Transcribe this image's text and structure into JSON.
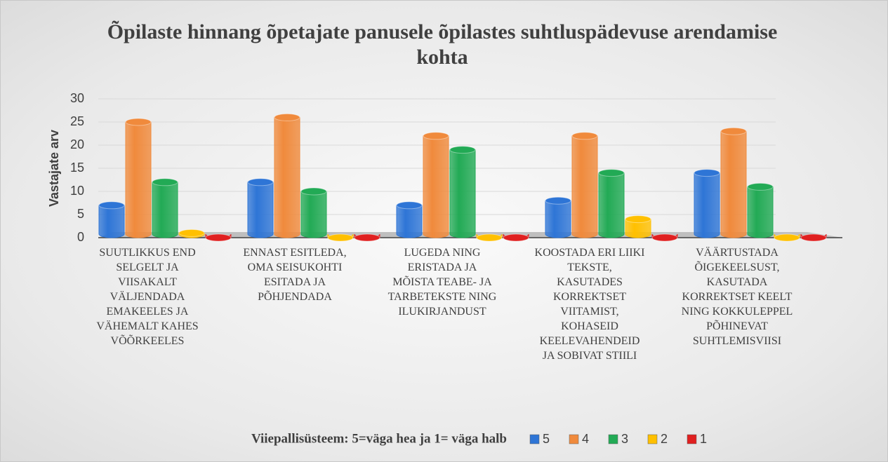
{
  "chart_data": {
    "type": "bar3d",
    "title": "Õpilaste hinnang õpetajate panusele õpilastes suhtluspädevuse arendamise kohta",
    "ylabel": "Vastajate arv",
    "legend_title": "Viiepallisüsteem: 5=väga hea ja 1= väga halb",
    "categories": [
      "Suutlikkus end selgelt ja viisakalt väljendada emakeeles ja vähemalt kahes võõrkeeles",
      "Ennast esitleda, oma seisukohti esitada ja põhjendada",
      "Lugeda ning eristada ja mõista teabe- ja tarbetekste ning ilukirjandust",
      "Koostada eri liiki tekste, kasutades korrektset viitamist, kohaseid keelevahendeid ja sobivat stiili",
      "Väärtustada õigekeelsust, kasutada korrektset keelt ning kokkuleppel põhinevat suhtlemisviisi"
    ],
    "series": [
      {
        "name": "5",
        "color": "#2e75d6",
        "values": [
          7,
          12,
          7,
          8,
          14
        ]
      },
      {
        "name": "4",
        "color": "#f08a3c",
        "values": [
          25,
          26,
          22,
          22,
          23
        ]
      },
      {
        "name": "3",
        "color": "#22aa55",
        "values": [
          12,
          10,
          19,
          14,
          11
        ]
      },
      {
        "name": "2",
        "color": "#ffc000",
        "values": [
          1,
          0,
          0,
          4,
          0
        ]
      },
      {
        "name": "1",
        "color": "#e02020",
        "values": [
          0,
          0,
          0,
          0,
          0
        ]
      }
    ],
    "ylim": [
      0,
      30
    ],
    "yticks": [
      0,
      5,
      10,
      15,
      20,
      25,
      30
    ],
    "grid": true,
    "legend": "bottom"
  }
}
